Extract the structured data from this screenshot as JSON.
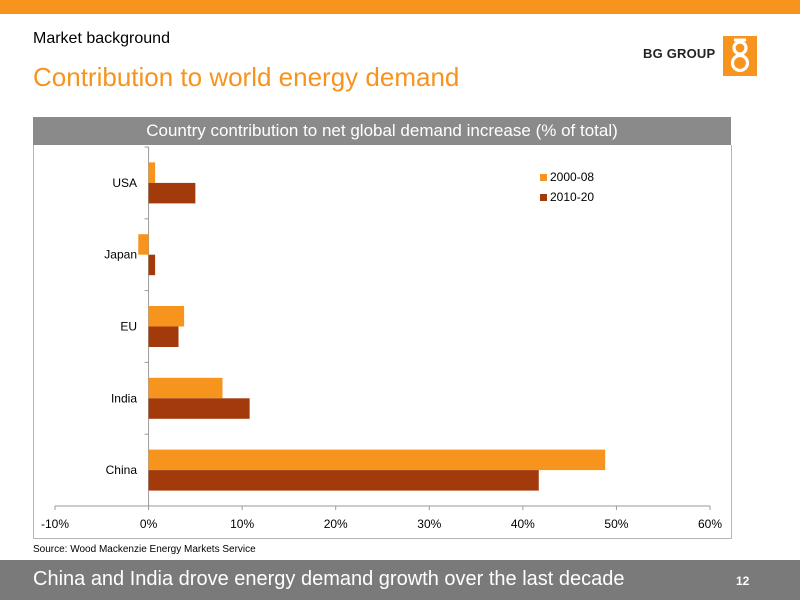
{
  "slide": {
    "section": "Market background",
    "title": "Contribution to world energy demand",
    "logo_text": "BG GROUP",
    "source": "Source: Wood Mackenzie Energy Markets Service",
    "takeaway": "China and India drove energy demand growth over the last decade",
    "page_number": "12",
    "accent_color": "#f7941d",
    "bar_color_dark": "#a33a0b",
    "footer_color": "#7a7a7a"
  },
  "chart_data": {
    "type": "bar",
    "orientation": "horizontal",
    "title": "Country contribution to net global demand increase (% of total)",
    "categories": [
      "USA",
      "Japan",
      "EU",
      "India",
      "China"
    ],
    "series": [
      {
        "name": "2000-08",
        "color": "#f7941d",
        "values": [
          0.7,
          -1.1,
          3.8,
          7.9,
          48.8
        ]
      },
      {
        "name": "2010-20",
        "color": "#a33a0b",
        "values": [
          5.0,
          0.7,
          3.2,
          10.8,
          41.7
        ]
      }
    ],
    "xlim": [
      -10,
      60
    ],
    "xticks": [
      -10,
      0,
      10,
      20,
      30,
      40,
      50,
      60
    ],
    "tick_labels": [
      "-10%",
      "0%",
      "10%",
      "20%",
      "30%",
      "40%",
      "50%",
      "60%"
    ],
    "legend": "top-right",
    "grid": false
  }
}
